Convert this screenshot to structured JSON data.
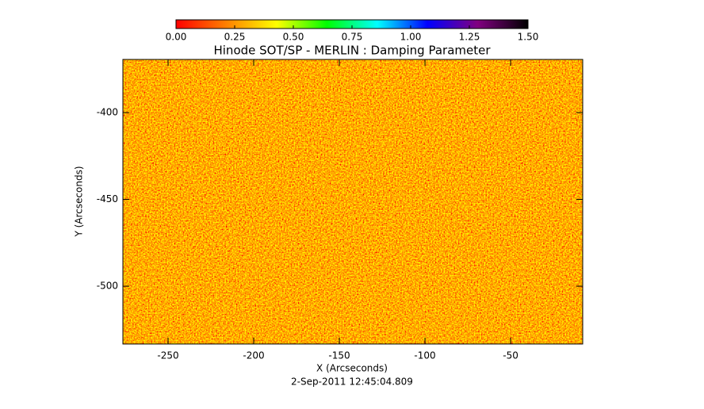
{
  "chart_data": {
    "type": "heatmap",
    "title": "Hinode SOT/SP - MERLIN : Damping Parameter",
    "subtitle": "2-Sep-2011 12:45:04.809",
    "x_label": "X (Arcseconds)",
    "y_label": "Y (Arcseconds)",
    "xlim": [
      -276.4,
      -7.9
    ],
    "ylim": [
      -533.3,
      -369.4
    ],
    "xticks": [
      -250,
      -200,
      -150,
      -100,
      -50
    ],
    "yticks": [
      -500,
      -450,
      -400
    ],
    "colorbar": {
      "range": [
        0,
        1.5
      ],
      "colors": [
        "#ff0000",
        "#ff8000",
        "#ffff00",
        "#00ff00",
        "#00ffff",
        "#0000ff",
        "#800080",
        "#000000"
      ],
      "ticks": [
        {
          "value": 0,
          "label": "0.00"
        },
        {
          "value": 0.25,
          "label": "0.25"
        },
        {
          "value": 0.5,
          "label": "0.50"
        },
        {
          "value": 0.75,
          "label": "0.75"
        },
        {
          "value": 1,
          "label": "1.00"
        },
        {
          "value": 1.25,
          "label": "1.25"
        },
        {
          "value": 1.5,
          "label": "1.50"
        }
      ]
    }
  }
}
